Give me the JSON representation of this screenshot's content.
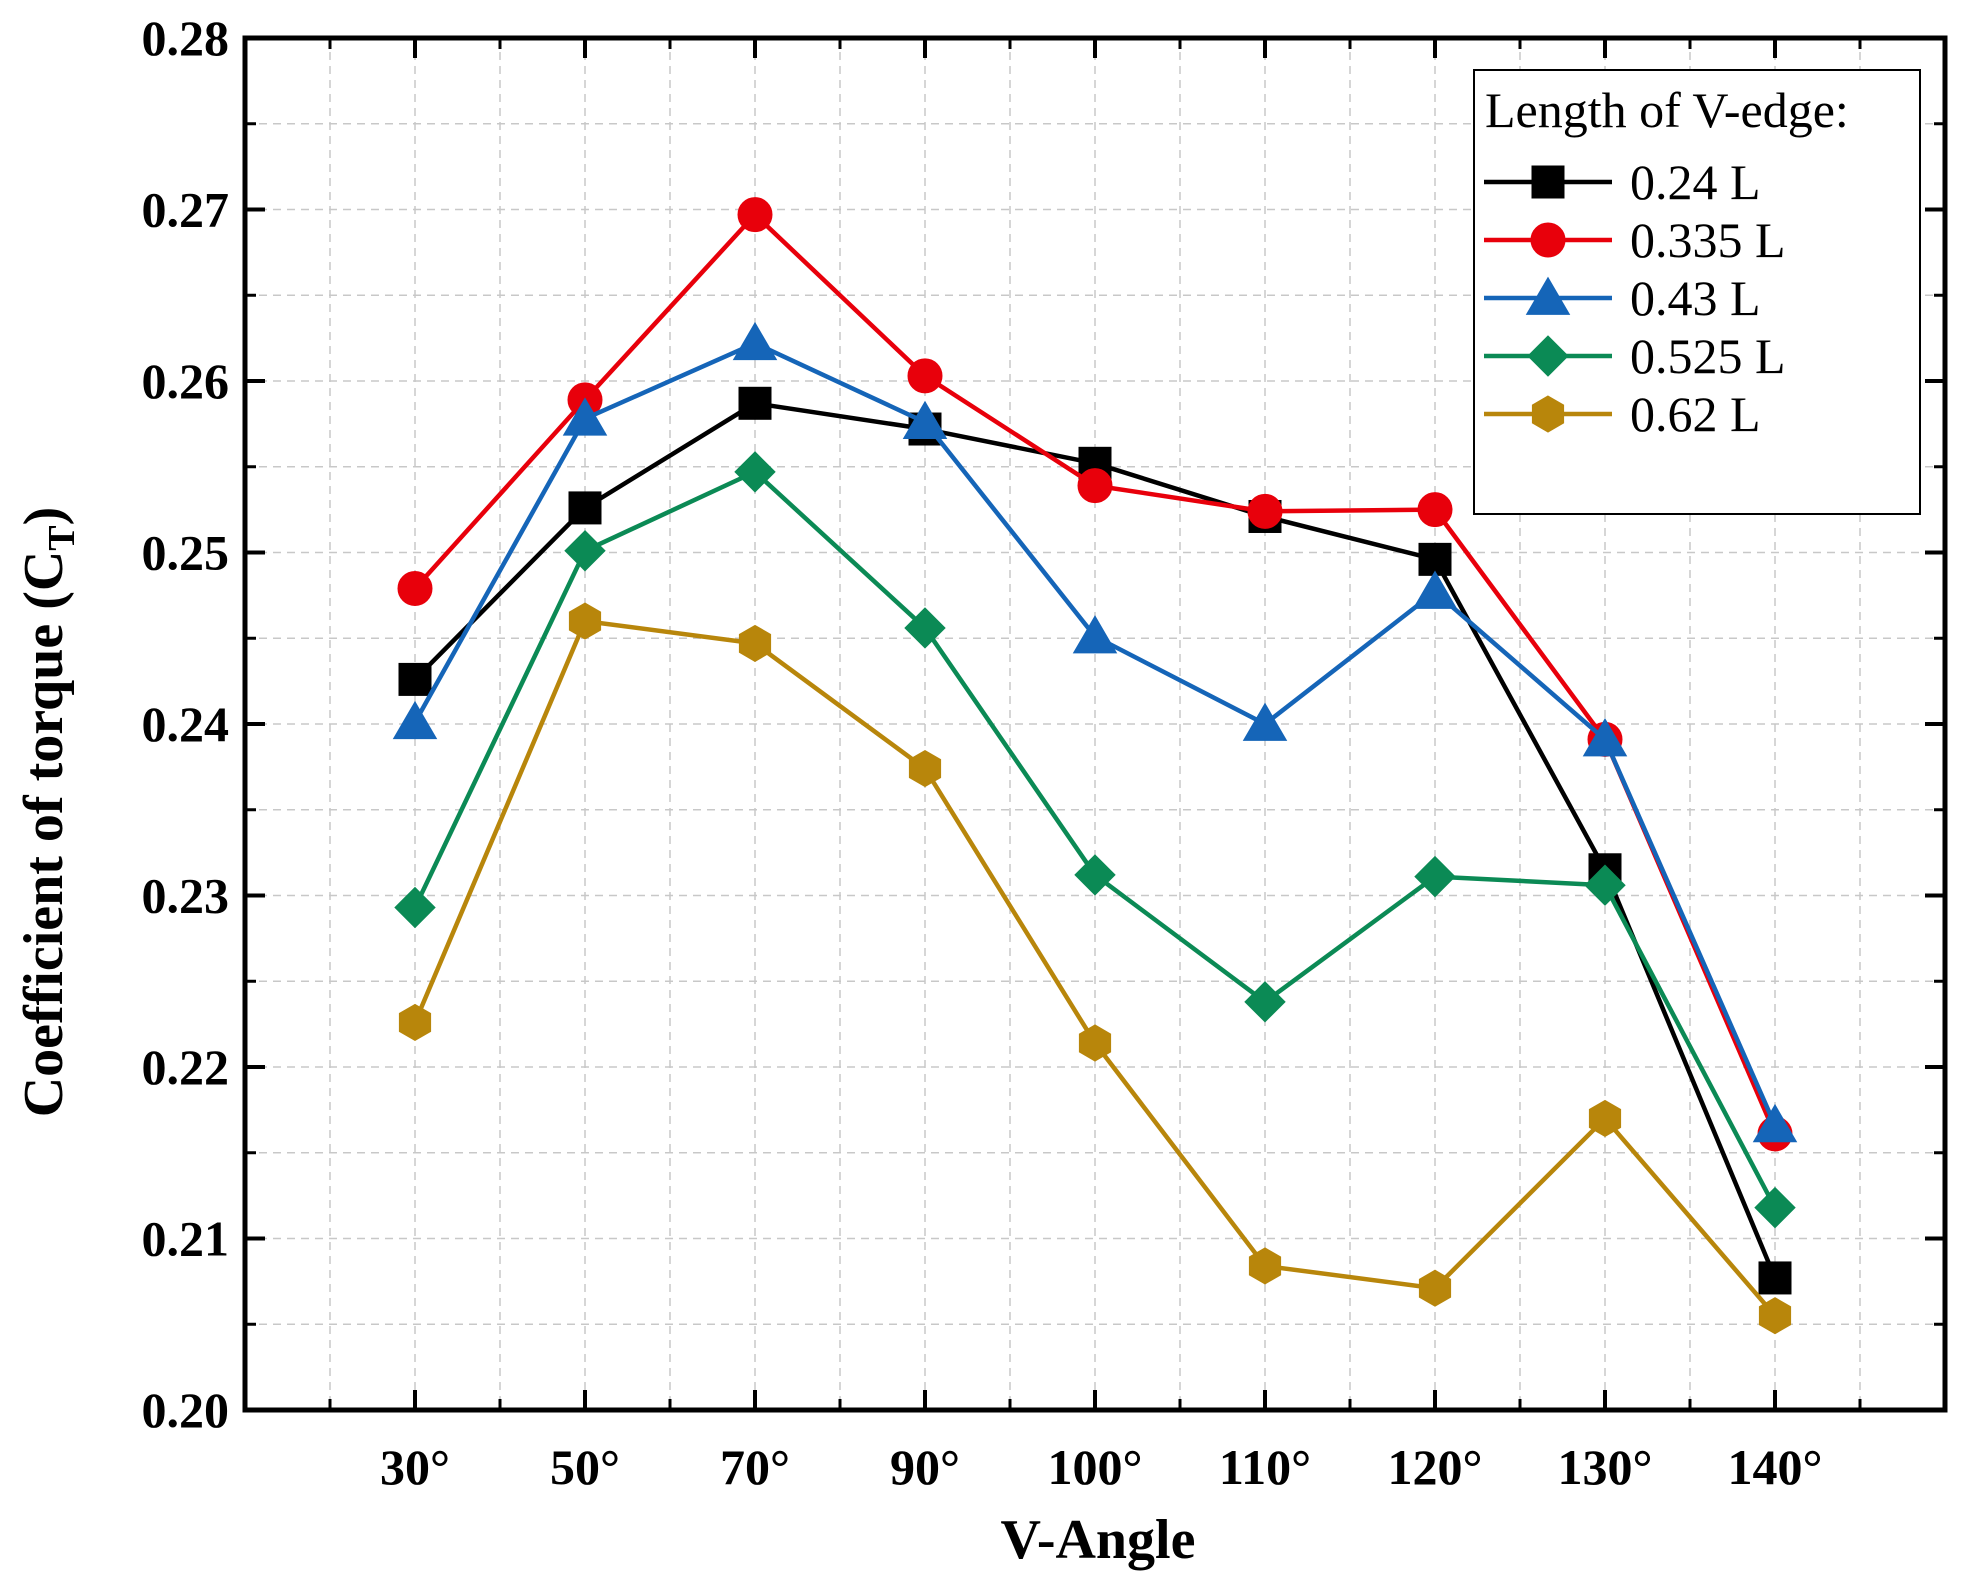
{
  "chart_data": {
    "type": "line",
    "categories": [
      "30°",
      "50°",
      "70°",
      "90°",
      "100°",
      "110°",
      "120°",
      "130°",
      "140°"
    ],
    "ylabel_main": "Coefficient of torque (C",
    "ylabel_sub": "T",
    "ylabel_close": ")",
    "xlabel": "V-Angle",
    "ylim": [
      0.2,
      0.28
    ],
    "yticks": [
      "0.20",
      "0.21",
      "0.22",
      "0.23",
      "0.24",
      "0.25",
      "0.26",
      "0.27",
      "0.28"
    ],
    "grid": true,
    "legend": {
      "title": "Length of V-edge:",
      "placement": "top-right"
    },
    "series": [
      {
        "name": "0.24 L",
        "color": "#000000",
        "marker": "square",
        "values": [
          0.2426,
          0.2526,
          0.2587,
          0.2572,
          0.2552,
          0.2521,
          0.2496,
          0.2315,
          0.2077
        ]
      },
      {
        "name": "0.335 L",
        "color": "#e8000b",
        "marker": "circle",
        "values": [
          0.2479,
          0.2589,
          0.2697,
          0.2603,
          0.2539,
          0.2524,
          0.2525,
          0.2391,
          0.2161
        ]
      },
      {
        "name": "0.43 L",
        "color": "#1565b8",
        "marker": "triangle",
        "values": [
          0.2401,
          0.2578,
          0.2622,
          0.2576,
          0.2451,
          0.24,
          0.2477,
          0.2391,
          0.2166
        ]
      },
      {
        "name": "0.525 L",
        "color": "#0b8a55",
        "marker": "diamond",
        "values": [
          0.2293,
          0.2501,
          0.2547,
          0.2456,
          0.2312,
          0.2238,
          0.2311,
          0.2306,
          0.2118
        ]
      },
      {
        "name": "0.62 L",
        "color": "#b8860b",
        "marker": "hexagon",
        "values": [
          0.2226,
          0.246,
          0.2447,
          0.2374,
          0.2214,
          0.2084,
          0.2071,
          0.217,
          0.2055
        ]
      }
    ]
  }
}
